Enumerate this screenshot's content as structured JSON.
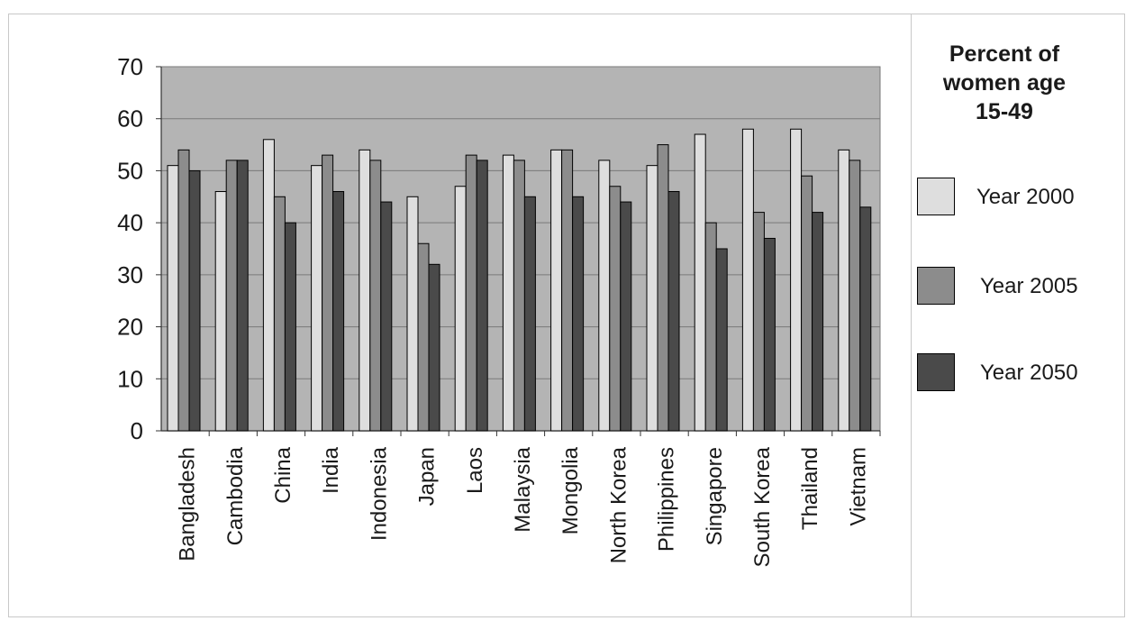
{
  "chart_data": {
    "type": "bar",
    "title": "",
    "xlabel": "",
    "ylabel": "",
    "ylim": [
      0,
      70
    ],
    "yticks": [
      0,
      10,
      20,
      30,
      40,
      50,
      60,
      70
    ],
    "grid": true,
    "legend_position": "right",
    "legend_title": "Percent of women age 15-49",
    "categories": [
      "Bangladesh",
      "Cambodia",
      "China",
      "India",
      "Indonesia",
      "Japan",
      "Laos",
      "Malaysia",
      "Mongolia",
      "North Korea",
      "Philippines",
      "Singapore",
      "South Korea",
      "Thailand",
      "Vietnam"
    ],
    "series": [
      {
        "name": "Year 2000",
        "color": "#dedede",
        "values": [
          51,
          46,
          56,
          51,
          54,
          45,
          47,
          53,
          54,
          52,
          51,
          57,
          58,
          58,
          54
        ]
      },
      {
        "name": "Year 2005",
        "color": "#8c8c8c",
        "values": [
          54,
          52,
          45,
          53,
          52,
          36,
          53,
          52,
          54,
          47,
          55,
          40,
          42,
          49,
          52
        ]
      },
      {
        "name": "Year 2050",
        "color": "#4a4a4a",
        "values": [
          50,
          52,
          40,
          46,
          44,
          32,
          52,
          45,
          45,
          44,
          46,
          35,
          37,
          42,
          43
        ]
      }
    ],
    "plot_background": "#b4b4b4"
  },
  "legend": {
    "title_lines": [
      "Percent of",
      "women age",
      "15-49"
    ]
  }
}
